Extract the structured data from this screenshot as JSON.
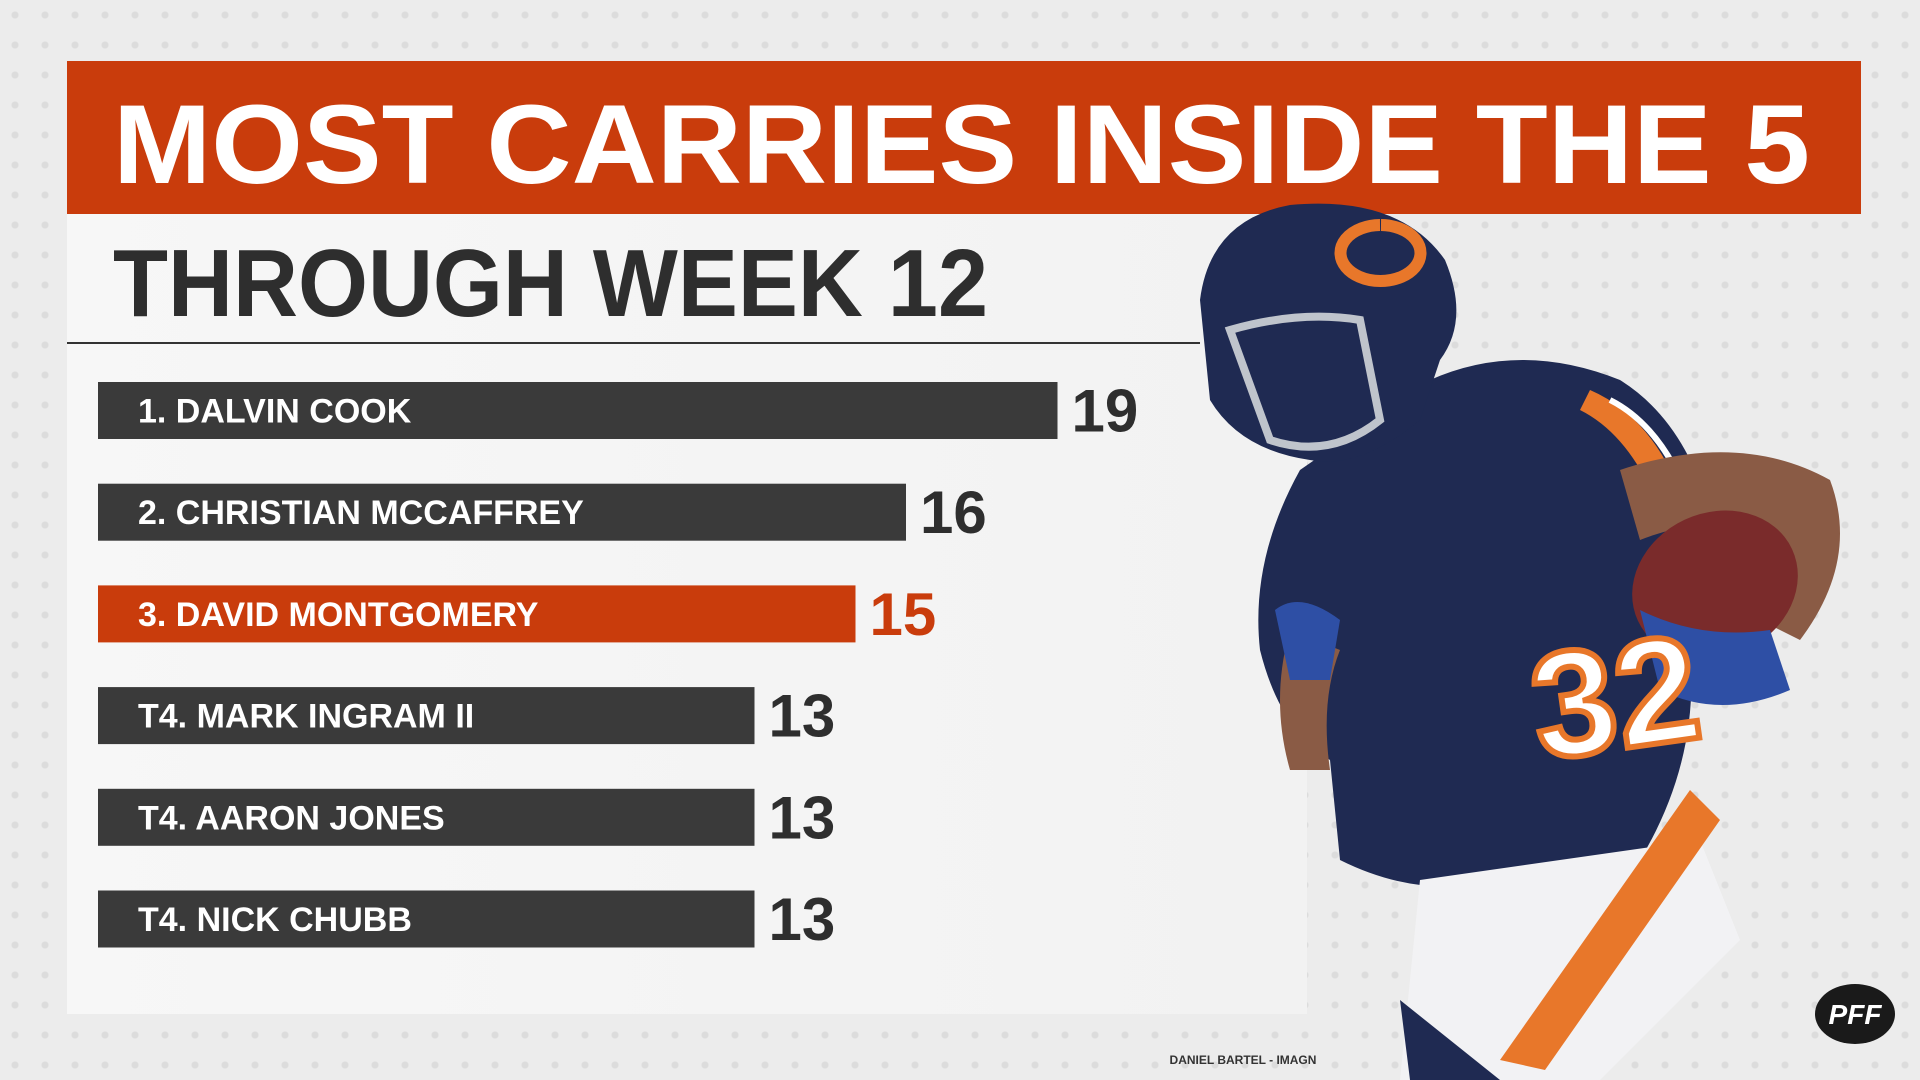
{
  "chart_data": {
    "type": "bar",
    "orientation": "horizontal",
    "title": "MOST CARRIES INSIDE THE 5",
    "subtitle": "THROUGH WEEK 12",
    "categories": [
      "1. DALVIN COOK",
      "2. CHRISTIAN MCCAFFREY",
      "3. DAVID MONTGOMERY",
      "T4. MARK INGRAM II",
      "T4. AARON JONES",
      "T4. NICK CHUBB"
    ],
    "values": [
      19,
      16,
      15,
      13,
      13,
      13
    ],
    "colors": [
      "#3a3a3a",
      "#3a3a3a",
      "#c93c0c",
      "#3a3a3a",
      "#3a3a3a",
      "#3a3a3a"
    ],
    "credit": "DANIEL BARTEL - IMAGN",
    "logo": "PFF"
  }
}
